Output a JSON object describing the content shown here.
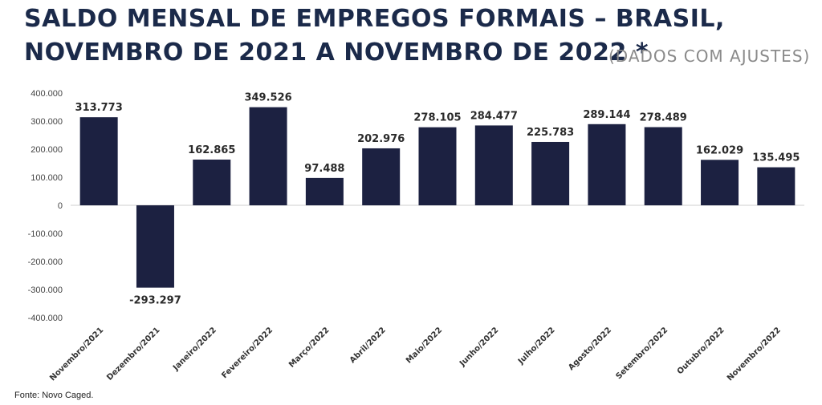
{
  "title": {
    "line1": "SALDO MENSAL DE EMPREGOS FORMAIS – BRASIL,",
    "line2": "NOVEMBRO DE 2021 A NOVEMBRO DE 2022",
    "asterisk": "*",
    "note": "(DADOS COM AJUSTES)"
  },
  "source": "Fonte: Novo Caged.",
  "colors": {
    "bar": "#1c2141",
    "title": "#1b2a4a",
    "axis": "#444444"
  },
  "chart_data": {
    "type": "bar",
    "categories": [
      "Novembro/2021",
      "Dezembro/2021",
      "Janeiro/2022",
      "Fevereiro/2022",
      "Março/2022",
      "Abril/2022",
      "Maio/2022",
      "Junho/2022",
      "Julho/2022",
      "Agosto/2022",
      "Setembro/2022",
      "Outubro/2022",
      "Novembro/2022"
    ],
    "values": [
      313773,
      -293297,
      162865,
      349526,
      97488,
      202976,
      278105,
      284477,
      225783,
      289144,
      278489,
      162029,
      135495
    ],
    "value_labels": [
      "313.773",
      "-293.297",
      "162.865",
      "349.526",
      "97.488",
      "202.976",
      "278.105",
      "284.477",
      "225.783",
      "289.144",
      "278.489",
      "162.029",
      "135.495"
    ],
    "yticks": [
      400000,
      300000,
      200000,
      100000,
      0,
      -100000,
      -200000,
      -300000,
      -400000
    ],
    "ytick_labels": [
      "400.000",
      "300.000",
      "200.000",
      "100.000",
      "0",
      "-100.000",
      "-200.000",
      "-300.000",
      "-400.000"
    ],
    "ylim": [
      -400000,
      400000
    ],
    "grid": false,
    "legend": "none"
  }
}
